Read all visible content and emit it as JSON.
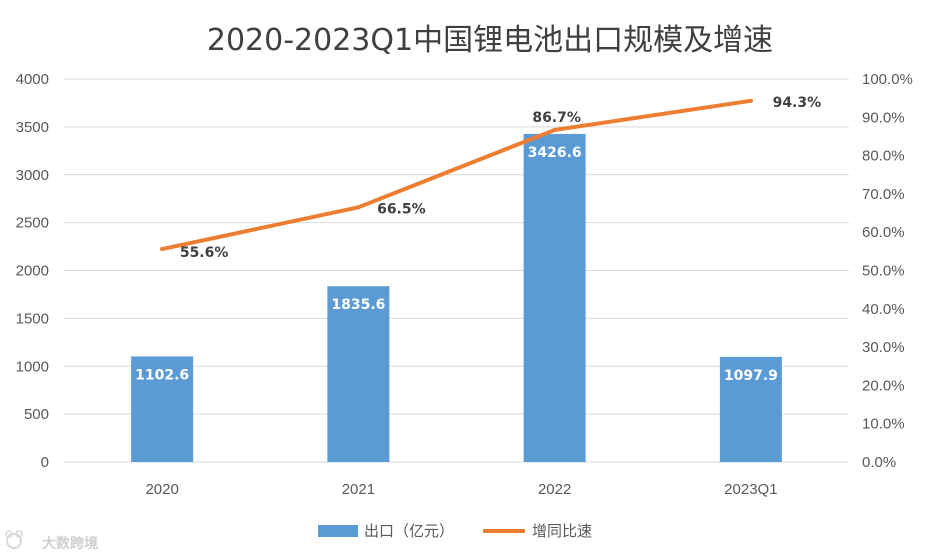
{
  "watermark": {
    "text": "大数跨境",
    "icon": "bear-logo-icon"
  },
  "chart_data": {
    "type": "bar+line",
    "title": "2020-2023Q1中国锂电池出口规模及增速",
    "categories": [
      "2020",
      "2021",
      "2022",
      "2023Q1"
    ],
    "series": [
      {
        "name": "出口（亿元）",
        "type": "bar",
        "axis": "left",
        "color": "#5B9BD5",
        "values": [
          1102.6,
          1835.6,
          3426.6,
          1097.9
        ],
        "labels": [
          "1102.6",
          "1835.6",
          "3426.6",
          "1097.9"
        ]
      },
      {
        "name": "增同比速",
        "type": "line",
        "axis": "right",
        "color": "#ED7D31",
        "values": [
          55.6,
          66.5,
          86.7,
          94.3
        ],
        "labels": [
          "55.6%",
          "66.5%",
          "86.7%",
          "94.3%"
        ]
      }
    ],
    "y_left": {
      "min": 0,
      "max": 4000,
      "ticks": [
        "0",
        "500",
        "1000",
        "1500",
        "2000",
        "2500",
        "3000",
        "3500",
        "4000"
      ]
    },
    "y_right": {
      "min": 0,
      "max": 100,
      "ticks": [
        "0.0%",
        "10.0%",
        "20.0%",
        "30.0%",
        "40.0%",
        "50.0%",
        "60.0%",
        "70.0%",
        "80.0%",
        "90.0%",
        "100.0%"
      ]
    },
    "gridlines": true,
    "legend_position": "bottom"
  }
}
